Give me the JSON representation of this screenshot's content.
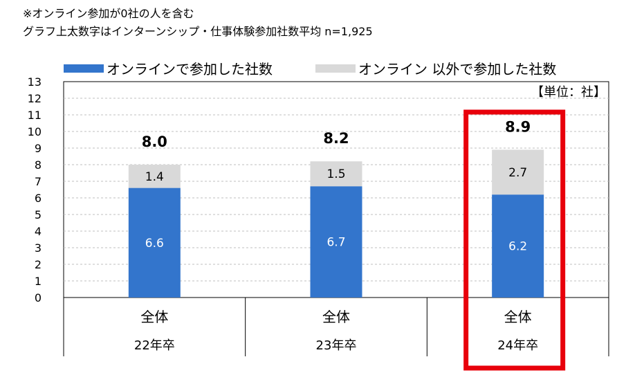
{
  "notes": {
    "line1": "※オンライン参加が0社の人を含む",
    "line2": "グラフ上太数字はインターンシップ・仕事体験参加社数平均 n=1,925"
  },
  "legend": {
    "online": "オンラインで参加した社数",
    "offline": "オンライン 以外で参加した社数"
  },
  "colors": {
    "online": "#3375cc",
    "offline": "#d9d9d9",
    "highlight": "#e8000b"
  },
  "chart_data": {
    "type": "bar",
    "stacked": true,
    "unit_label": "【単位：社】",
    "categories": [
      "全体",
      "全体",
      "全体"
    ],
    "subcategories": [
      "22年卒",
      "23年卒",
      "24年卒"
    ],
    "series": [
      {
        "name": "オンラインで参加した社数",
        "values": [
          6.6,
          6.7,
          6.2
        ],
        "labels": [
          "6.6",
          "6.7",
          "6.2"
        ]
      },
      {
        "name": "オンライン 以外で参加した社数",
        "values": [
          1.4,
          1.5,
          2.7
        ],
        "labels": [
          "1.4",
          "1.5",
          "2.7"
        ]
      }
    ],
    "totals": [
      8.0,
      8.2,
      8.9
    ],
    "total_labels": [
      "8.0",
      "8.2",
      "8.9"
    ],
    "ylim": [
      0,
      13
    ],
    "yticks": [
      "0",
      "1",
      "2",
      "3",
      "4",
      "5",
      "6",
      "7",
      "8",
      "9",
      "10",
      "11",
      "12",
      "13"
    ],
    "grid": true,
    "highlighted_category": 2
  }
}
